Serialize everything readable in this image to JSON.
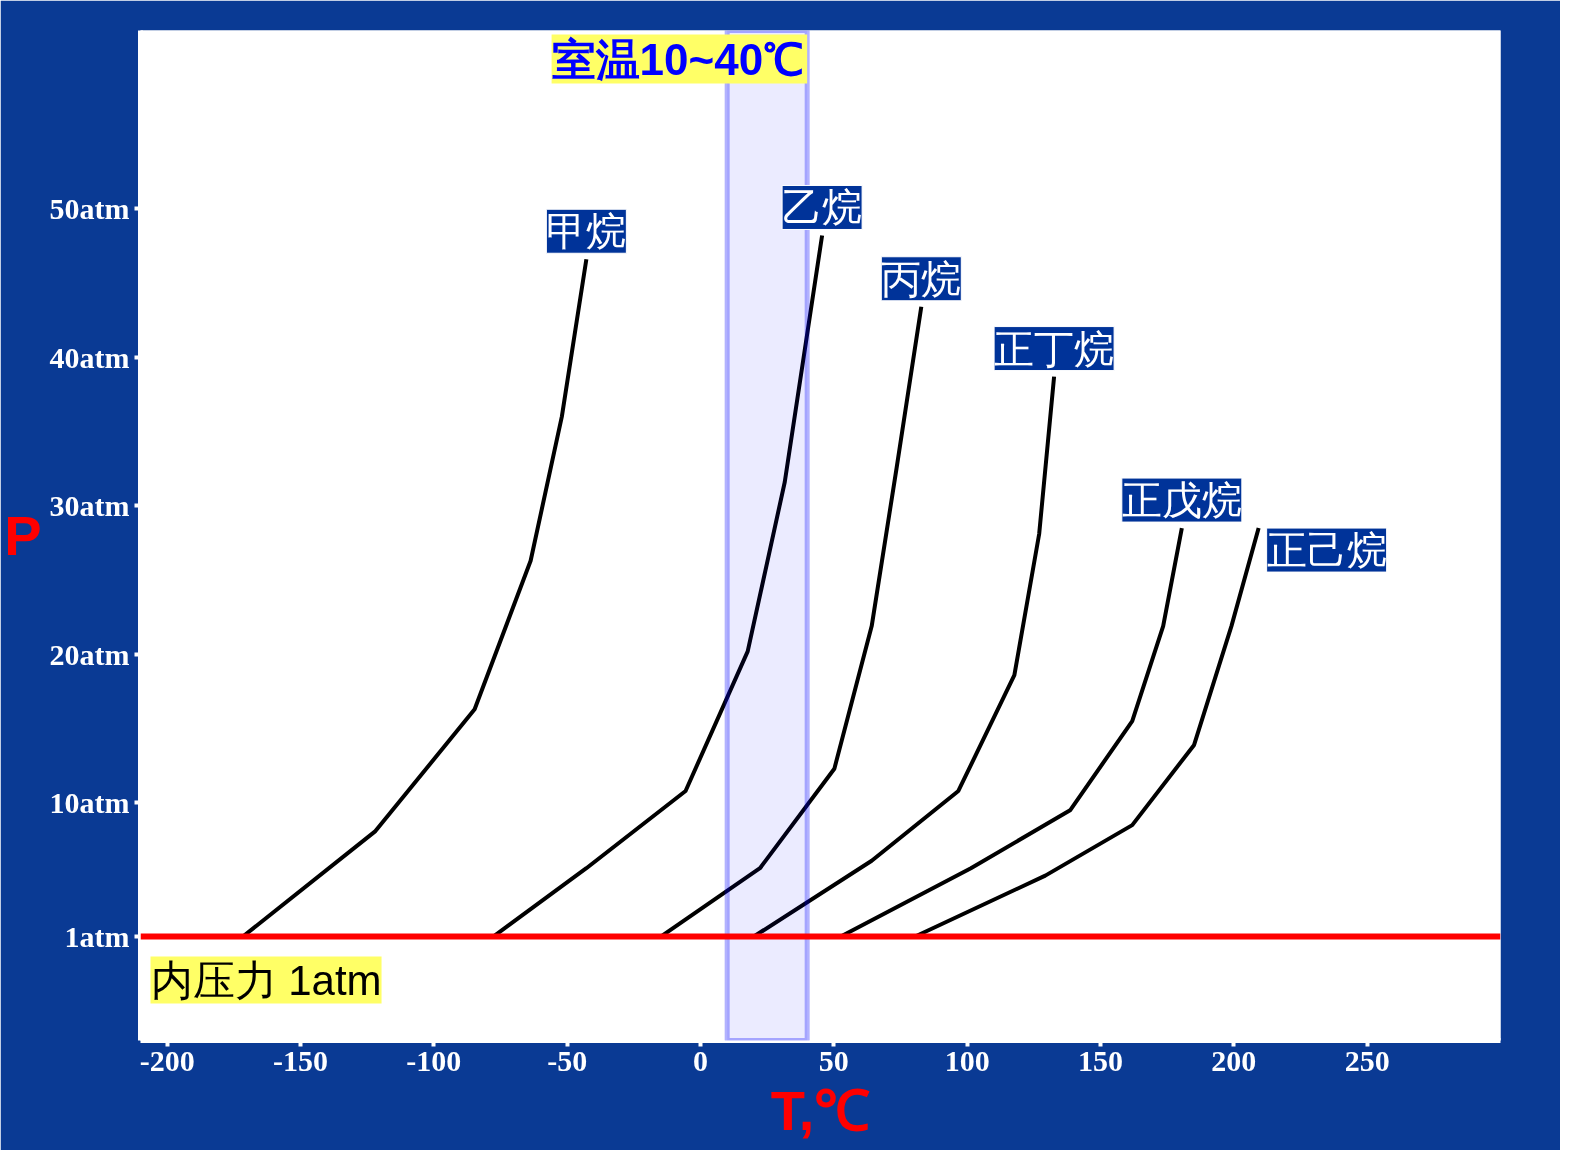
{
  "chart_data": {
    "type": "line",
    "xlabel": "T,℃",
    "ylabel": "P",
    "xlim": [
      -210,
      300
    ],
    "ylim": [
      -6,
      62
    ],
    "xticks": [
      -200,
      -150,
      -100,
      -50,
      0,
      50,
      100,
      150,
      200,
      250
    ],
    "yticks": [
      {
        "value": 1,
        "label": "1atm"
      },
      {
        "value": 10,
        "label": "10atm"
      },
      {
        "value": 20,
        "label": "20atm"
      },
      {
        "value": 30,
        "label": "30atm"
      },
      {
        "value": 40,
        "label": "40atm"
      },
      {
        "value": 50,
        "label": "50atm"
      }
    ],
    "grid": false,
    "marker": "none",
    "line_style": "solid",
    "series": [
      {
        "name": "甲烷",
        "color": "#000000",
        "x": [
          -171.6,
          -121.9,
          -84.7,
          -63.7,
          -52,
          -42.8
        ],
        "values": [
          1,
          8.1,
          16.3,
          26.3,
          36,
          46.6
        ]
      },
      {
        "name": "乙烷",
        "color": "#000000",
        "x": [
          -77.7,
          -42.8,
          -5.6,
          17.7,
          31.6,
          45.6
        ],
        "values": [
          1,
          5.6,
          10.8,
          20.2,
          31.6,
          48.2
        ]
      },
      {
        "name": "丙烷",
        "color": "#000000",
        "x": [
          -14.9,
          22.3,
          50.2,
          64.2,
          73.5,
          82.8
        ],
        "values": [
          1,
          5.6,
          12.3,
          21.9,
          32.5,
          43.4
        ]
      },
      {
        "name": "正丁烷",
        "color": "#000000",
        "x": [
          20,
          64.2,
          96.7,
          117.7,
          127,
          132.6
        ],
        "values": [
          1,
          6.1,
          10.8,
          18.6,
          28.1,
          38.7
        ]
      },
      {
        "name": "正戊烷",
        "color": "#000000",
        "x": [
          52.6,
          101.4,
          138.6,
          161.9,
          173.5,
          180.5
        ],
        "values": [
          1,
          5.6,
          9.5,
          15.5,
          21.9,
          28.5
        ]
      },
      {
        "name": "正己烷",
        "color": "#000000",
        "x": [
          80.5,
          129.3,
          161.9,
          185.1,
          199.1,
          209.3
        ],
        "values": [
          1,
          5.1,
          8.5,
          13.9,
          21.9,
          28.5
        ]
      }
    ],
    "ref_lines": [
      {
        "axis": "y",
        "value": 1,
        "label": "内压力 1atm",
        "color": "#ff0000",
        "line_style": "solid"
      }
    ],
    "bands": [
      {
        "axis": "x",
        "from": 10,
        "to": 40,
        "label": "室温10~40℃",
        "color": "#0000ff"
      }
    ]
  }
}
